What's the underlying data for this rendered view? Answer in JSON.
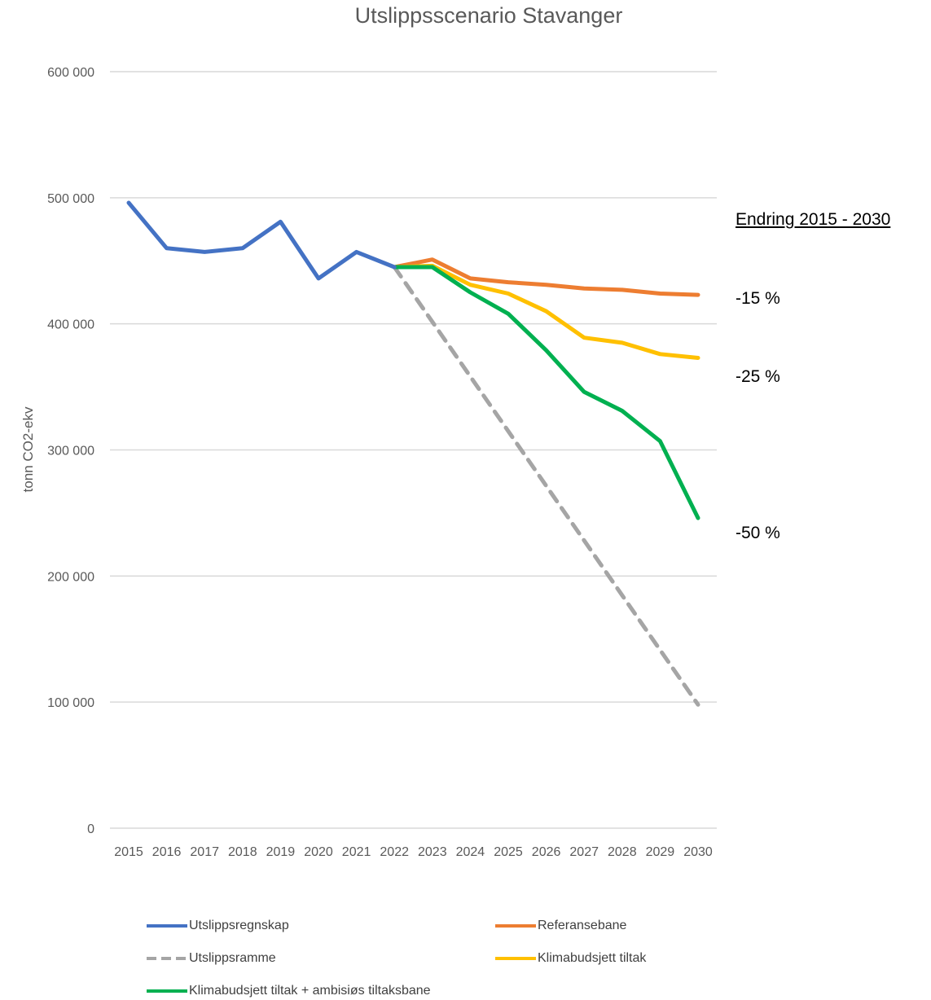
{
  "chart_data": {
    "type": "line",
    "title": "Utslippsscenario Stavanger",
    "ylabel": "tonn CO2-ekv",
    "xlabel": "",
    "categories": [
      "2015",
      "2016",
      "2017",
      "2018",
      "2019",
      "2020",
      "2021",
      "2022",
      "2023",
      "2024",
      "2025",
      "2026",
      "2027",
      "2028",
      "2029",
      "2030"
    ],
    "y_ticks": [
      "0",
      "100 000",
      "200 000",
      "300 000",
      "400 000",
      "500 000",
      "600 000"
    ],
    "ylim": [
      0,
      600000
    ],
    "grid": true,
    "legend_position": "bottom",
    "series": [
      {
        "name": "Utslippsregnskap",
        "color": "#4472C4",
        "style": "solid",
        "values": [
          496000,
          460000,
          457000,
          460000,
          481000,
          436000,
          457000,
          445000,
          null,
          null,
          null,
          null,
          null,
          null,
          null,
          null
        ]
      },
      {
        "name": "Referansebane",
        "color": "#ED7D31",
        "style": "solid",
        "values": [
          null,
          null,
          null,
          null,
          null,
          null,
          null,
          445000,
          451000,
          436000,
          433000,
          431000,
          428000,
          427000,
          424000,
          423000
        ]
      },
      {
        "name": "Utslippsramme",
        "color": "#A5A5A5",
        "style": "dashed",
        "values": [
          null,
          null,
          null,
          null,
          null,
          null,
          null,
          445000,
          null,
          null,
          null,
          null,
          null,
          null,
          null,
          98000
        ]
      },
      {
        "name": "Klimabudsjett tiltak",
        "color": "#FFC000",
        "style": "solid",
        "values": [
          null,
          null,
          null,
          null,
          null,
          null,
          null,
          445000,
          446000,
          431000,
          424000,
          410000,
          389000,
          385000,
          376000,
          373000
        ]
      },
      {
        "name": "Klimabudsjett tiltak + ambisiøs tiltaksbane",
        "color": "#00B050",
        "style": "solid",
        "values": [
          null,
          null,
          null,
          null,
          null,
          null,
          null,
          445000,
          445000,
          425000,
          408000,
          379000,
          346000,
          331000,
          307000,
          246000
        ]
      }
    ],
    "annotations": {
      "heading": "Endring 2015 - 2030",
      "changes": [
        "-15 %",
        "-25 %",
        "-50 %"
      ]
    }
  }
}
